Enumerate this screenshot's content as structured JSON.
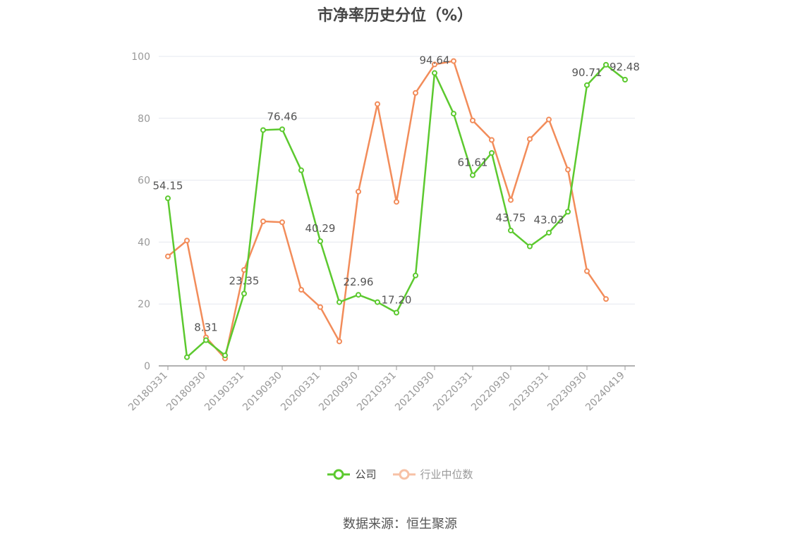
{
  "title": "市净率历史分位（%）",
  "source": "数据来源：恒生聚源",
  "colors": {
    "company": "#5cc92f",
    "industry": "#f28c5a",
    "grid": "#e5e8ef",
    "axis": "#999999",
    "axis_text": "#999999",
    "label_text": "#555555"
  },
  "chart_data": {
    "type": "line",
    "title": "市净率历史分位（%）",
    "xlabel": "",
    "ylabel": "",
    "ylim": [
      0,
      100
    ],
    "yticks": [
      0,
      20,
      40,
      60,
      80,
      100
    ],
    "grid": true,
    "legend_position": "bottom",
    "x": [
      "20180331",
      "20180630",
      "20180930",
      "20181231",
      "20190331",
      "20190630",
      "20190930",
      "20191231",
      "20200331",
      "20200630",
      "20200930",
      "20201231",
      "20210331",
      "20210630",
      "20210930",
      "20211231",
      "20220331",
      "20220630",
      "20220930",
      "20221231",
      "20230331",
      "20230630",
      "20230930",
      "20231231",
      "20240419"
    ],
    "tick_labels": [
      "20180331",
      "20180930",
      "20190331",
      "20190930",
      "20200331",
      "20200930",
      "20210331",
      "20210930",
      "20220331",
      "20220930",
      "20230331",
      "20230930",
      "20240419"
    ],
    "tick_indices": [
      0,
      2,
      4,
      6,
      8,
      10,
      12,
      14,
      16,
      18,
      20,
      22,
      24
    ],
    "series": [
      {
        "name": "公司",
        "color": "#5cc92f",
        "values": [
          54.15,
          2.8,
          8.31,
          3.4,
          23.35,
          76.2,
          76.46,
          63.2,
          40.29,
          20.6,
          22.96,
          20.6,
          17.2,
          29.2,
          94.64,
          81.5,
          61.61,
          68.8,
          43.75,
          38.6,
          43.03,
          49.8,
          90.71,
          97.3,
          92.48
        ],
        "labels": [
          "54.15",
          "",
          "8.31",
          "",
          "23.35",
          "",
          "76.46",
          "",
          "40.29",
          "",
          "22.96",
          "",
          "17.20",
          "",
          "94.64",
          "",
          "61.61",
          "",
          "43.75",
          "",
          "43.03",
          "",
          "90.71",
          "",
          "92.48"
        ]
      },
      {
        "name": "行业中位数",
        "color": "#f28c5a",
        "values": [
          35.4,
          40.5,
          9.2,
          2.4,
          31.0,
          46.7,
          46.4,
          24.6,
          19.0,
          7.9,
          56.3,
          84.6,
          53.0,
          88.2,
          97.4,
          98.5,
          79.3,
          73.0,
          53.6,
          73.3,
          79.6,
          63.4,
          30.6,
          21.6,
          null
        ],
        "labels": []
      }
    ]
  }
}
